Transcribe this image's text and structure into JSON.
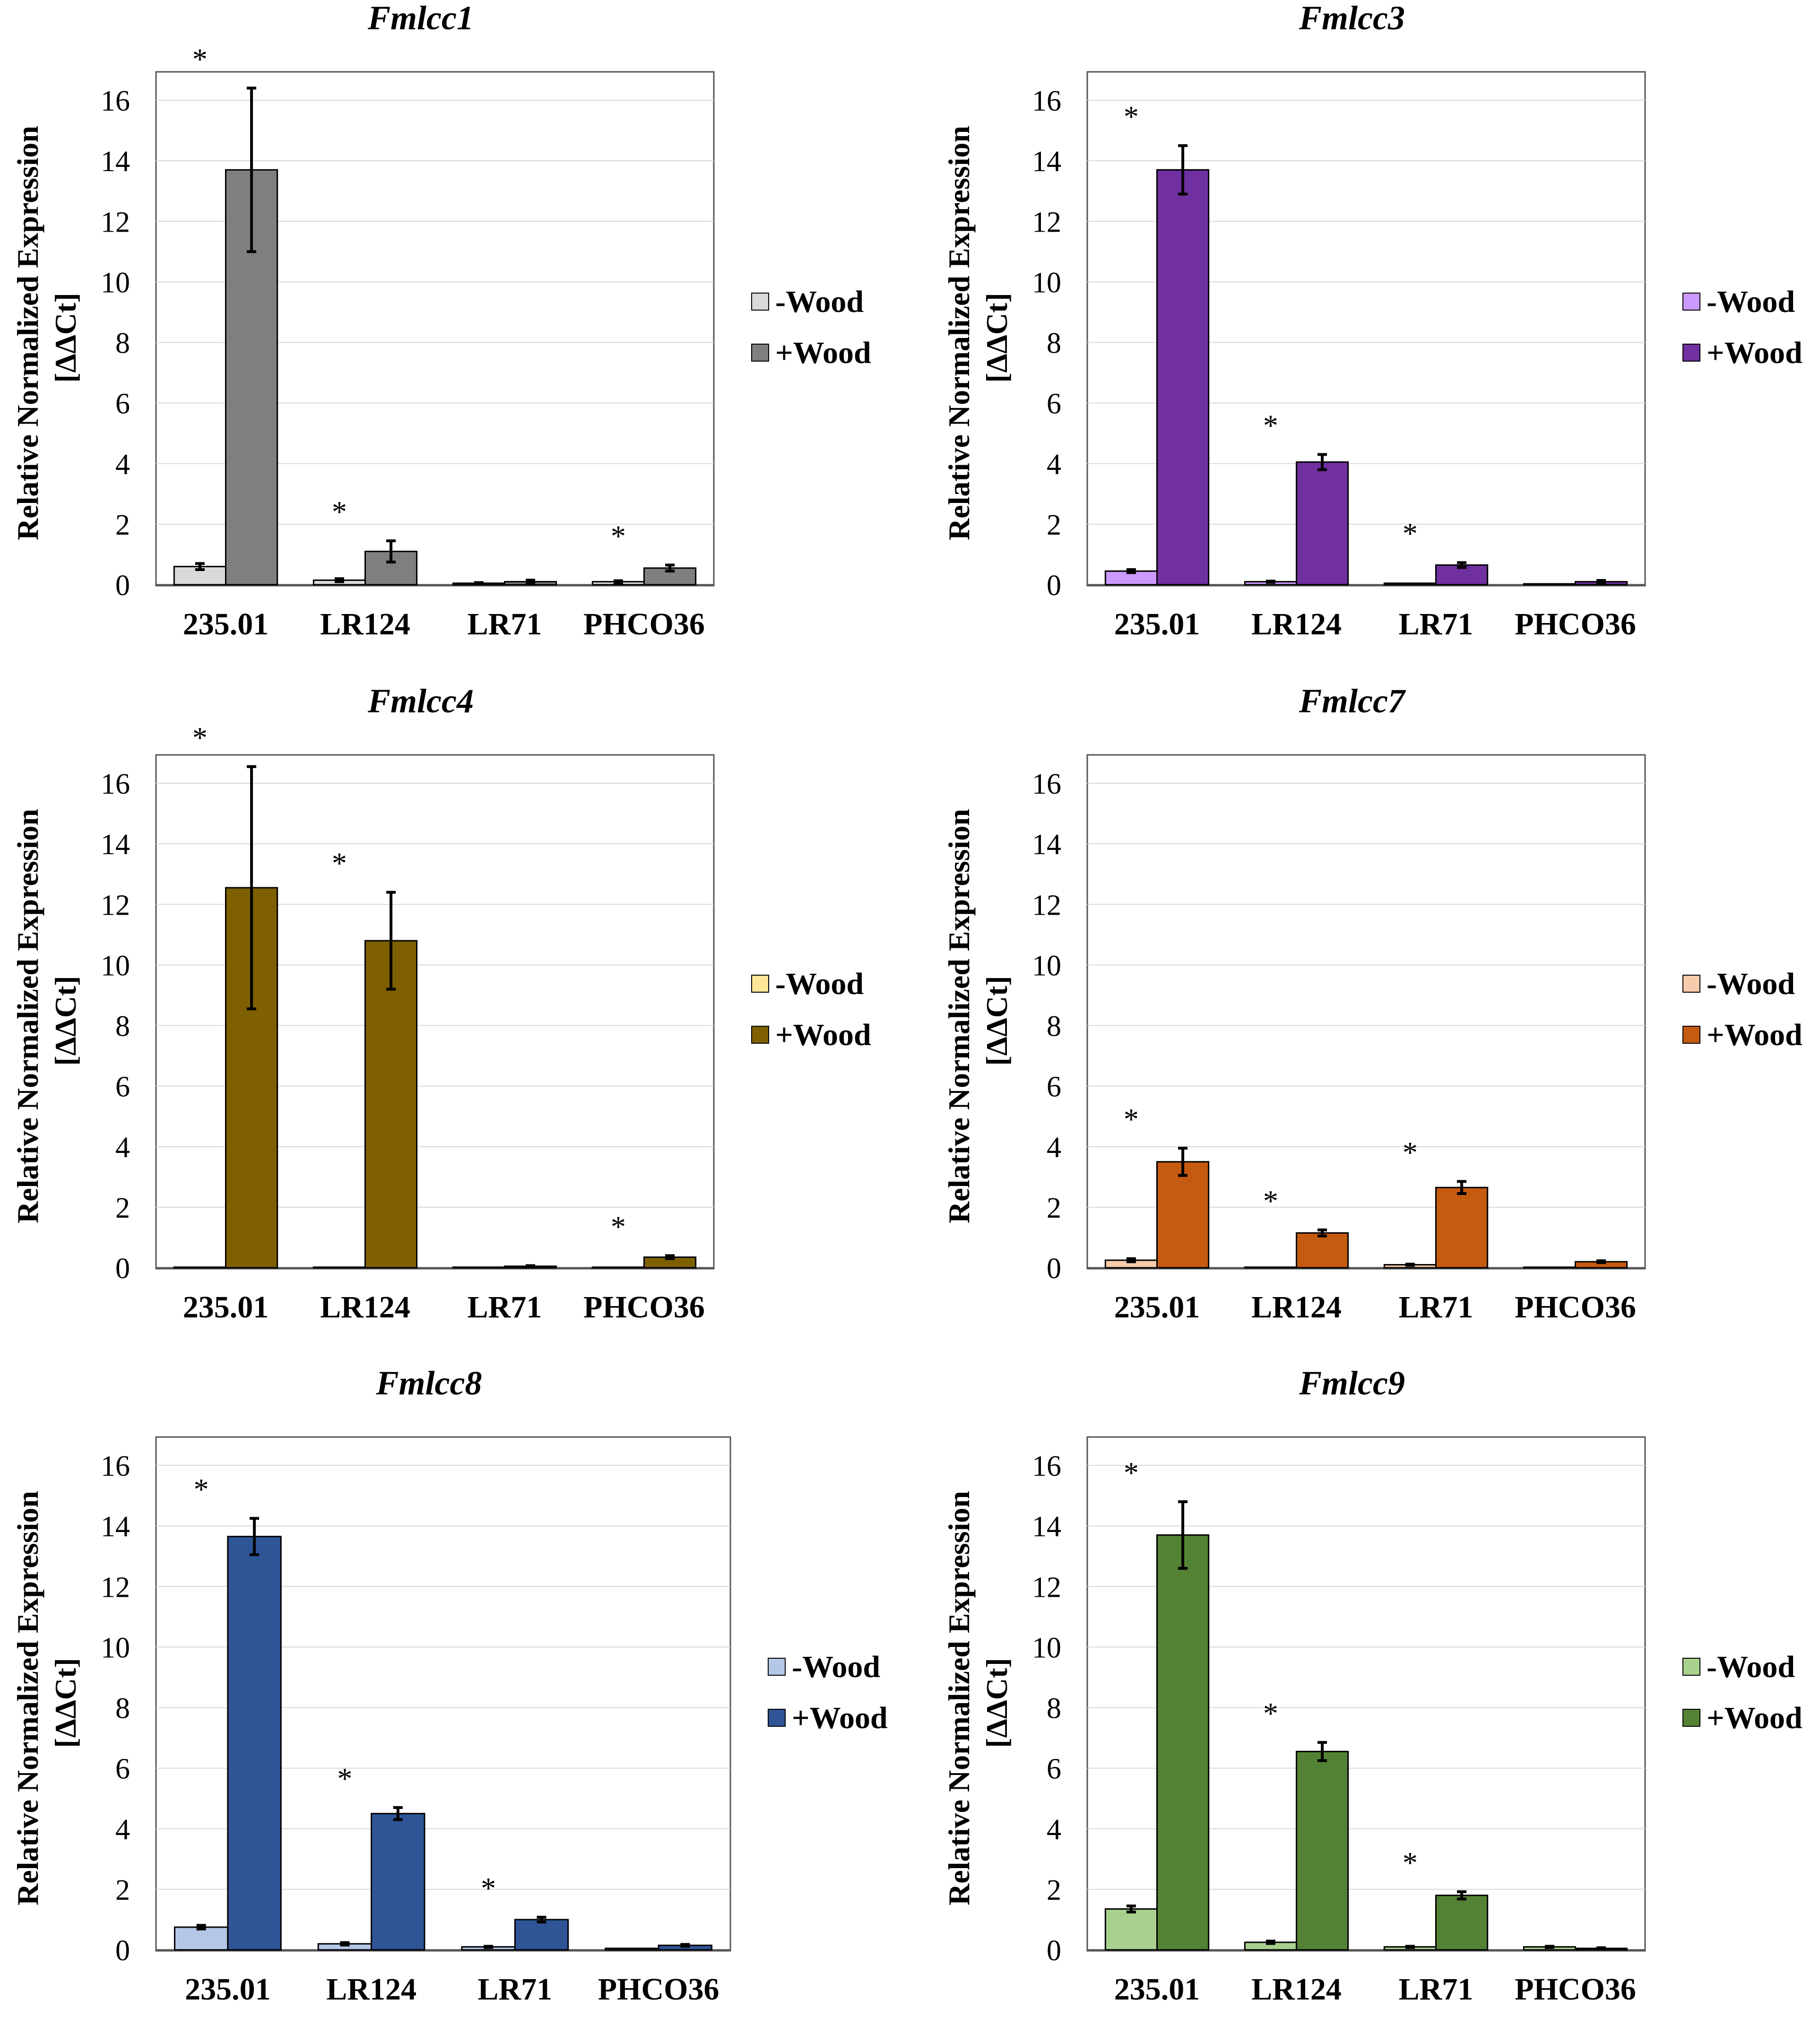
{
  "colors": {
    "Fmlcc1": {
      "minus": "#d9d9d9",
      "plus": "#7f7f7f"
    },
    "Fmlcc3": {
      "minus": "#cc99ff",
      "plus": "#7030a0"
    },
    "Fmlcc4": {
      "minus": "#ffe699",
      "plus": "#7f6000"
    },
    "Fmlcc7": {
      "minus": "#f8cbad",
      "plus": "#c55a11"
    },
    "Fmlcc8": {
      "minus": "#b4c7e7",
      "plus": "#2f5597"
    },
    "Fmlcc9": {
      "minus": "#a9d18e",
      "plus": "#548235"
    }
  },
  "chart_data": [
    {
      "type": "bar",
      "title": "Fmlcc1",
      "ylabel_line1": "Relative Normalized  Expression",
      "ylabel_line2": "[ΔΔCt]",
      "xlabel": "",
      "ylim": [
        0,
        17
      ],
      "yticks": [
        0,
        2,
        4,
        6,
        8,
        10,
        12,
        14,
        16
      ],
      "gridlines": true,
      "legend_position": "right",
      "categories": [
        "235.01",
        "LR124",
        "LR71",
        "PHCO36"
      ],
      "series": [
        {
          "name": "-Wood",
          "values": [
            0.6,
            0.15,
            0.05,
            0.1
          ],
          "errors": [
            0.1,
            0.05,
            0.02,
            0.03
          ]
        },
        {
          "name": "+Wood",
          "values": [
            13.7,
            1.1,
            0.1,
            0.55
          ],
          "errors": [
            2.7,
            0.35,
            0.05,
            0.1
          ]
        }
      ],
      "annotations": [
        "*",
        "*",
        "",
        "*"
      ]
    },
    {
      "type": "bar",
      "title": "Fmlcc3",
      "ylabel_line1": "Relative Normalized  Expression",
      "ylabel_line2": "[ΔΔCt]",
      "xlabel": "",
      "ylim": [
        0,
        17
      ],
      "yticks": [
        0,
        2,
        4,
        6,
        8,
        10,
        12,
        14,
        16
      ],
      "gridlines": true,
      "legend_position": "right",
      "categories": [
        "235.01",
        "LR124",
        "LR71",
        "PHCO36"
      ],
      "series": [
        {
          "name": "-Wood",
          "values": [
            0.45,
            0.1,
            0.05,
            0.03
          ],
          "errors": [
            0.05,
            0.02,
            0.01,
            0.01
          ]
        },
        {
          "name": "+Wood",
          "values": [
            13.7,
            4.05,
            0.65,
            0.1
          ],
          "errors": [
            0.8,
            0.25,
            0.08,
            0.04
          ]
        }
      ],
      "annotations": [
        "*",
        "*",
        "*",
        ""
      ]
    },
    {
      "type": "bar",
      "title": "Fmlcc4",
      "ylabel_line1": "Relative Normalized  Expression",
      "ylabel_line2": "[ΔΔCt]",
      "xlabel": "",
      "ylim": [
        0,
        17
      ],
      "yticks": [
        0,
        2,
        4,
        6,
        8,
        10,
        12,
        14,
        16
      ],
      "gridlines": true,
      "legend_position": "right",
      "categories": [
        "235.01",
        "LR124",
        "LR71",
        "PHCO36"
      ],
      "series": [
        {
          "name": "-Wood",
          "values": [
            0.02,
            0.02,
            0.02,
            0.02
          ],
          "errors": [
            0,
            0,
            0,
            0
          ]
        },
        {
          "name": "+Wood",
          "values": [
            12.55,
            10.8,
            0.05,
            0.35
          ],
          "errors": [
            4.0,
            1.6,
            0.02,
            0.05
          ]
        }
      ],
      "annotations": [
        "*",
        "*",
        "",
        "*"
      ]
    },
    {
      "type": "bar",
      "title": "Fmlcc7",
      "ylabel_line1": "Relative Normalized  Expression",
      "ylabel_line2": "[ΔΔCt]",
      "xlabel": "",
      "ylim": [
        0,
        17
      ],
      "yticks": [
        0,
        2,
        4,
        6,
        8,
        10,
        12,
        14,
        16
      ],
      "gridlines": true,
      "legend_position": "right",
      "categories": [
        "235.01",
        "LR124",
        "LR71",
        "PHCO36"
      ],
      "series": [
        {
          "name": "-Wood",
          "values": [
            0.25,
            0.02,
            0.1,
            0.02
          ],
          "errors": [
            0.05,
            0,
            0.02,
            0
          ]
        },
        {
          "name": "+Wood",
          "values": [
            3.5,
            1.15,
            2.65,
            0.2
          ],
          "errors": [
            0.45,
            0.1,
            0.2,
            0.03
          ]
        }
      ],
      "annotations": [
        "*",
        "*",
        "*",
        ""
      ]
    },
    {
      "type": "bar",
      "title": "Fmlcc8",
      "ylabel_line1": "Relative Normalized  Expression",
      "ylabel_line2": "[ΔΔCt]",
      "xlabel": "",
      "ylim": [
        0,
        17
      ],
      "yticks": [
        0,
        2,
        4,
        6,
        8,
        10,
        12,
        14,
        16
      ],
      "gridlines": true,
      "legend_position": "right",
      "categories": [
        "235.01",
        "LR124",
        "LR71",
        "PHCO36"
      ],
      "series": [
        {
          "name": "-Wood",
          "values": [
            0.75,
            0.2,
            0.1,
            0.05
          ],
          "errors": [
            0.06,
            0.04,
            0.02,
            0.01
          ]
        },
        {
          "name": "+Wood",
          "values": [
            13.65,
            4.5,
            1.0,
            0.15
          ],
          "errors": [
            0.6,
            0.2,
            0.08,
            0.03
          ]
        }
      ],
      "annotations": [
        "*",
        "*",
        "*",
        ""
      ]
    },
    {
      "type": "bar",
      "title": "Fmlcc9",
      "ylabel_line1": "Relative Normalized  Expression",
      "ylabel_line2": "[ΔΔCt]",
      "xlabel": "",
      "ylim": [
        0,
        17
      ],
      "yticks": [
        0,
        2,
        4,
        6,
        8,
        10,
        12,
        14,
        16
      ],
      "gridlines": true,
      "legend_position": "right",
      "categories": [
        "235.01",
        "LR124",
        "LR71",
        "PHCO36"
      ],
      "series": [
        {
          "name": "-Wood",
          "values": [
            1.35,
            0.25,
            0.1,
            0.1
          ],
          "errors": [
            0.1,
            0.04,
            0.02,
            0.02
          ]
        },
        {
          "name": "+Wood",
          "values": [
            13.7,
            6.55,
            1.8,
            0.05
          ],
          "errors": [
            1.1,
            0.3,
            0.12,
            0.02
          ]
        }
      ],
      "annotations": [
        "*",
        "*",
        "*",
        ""
      ]
    }
  ]
}
